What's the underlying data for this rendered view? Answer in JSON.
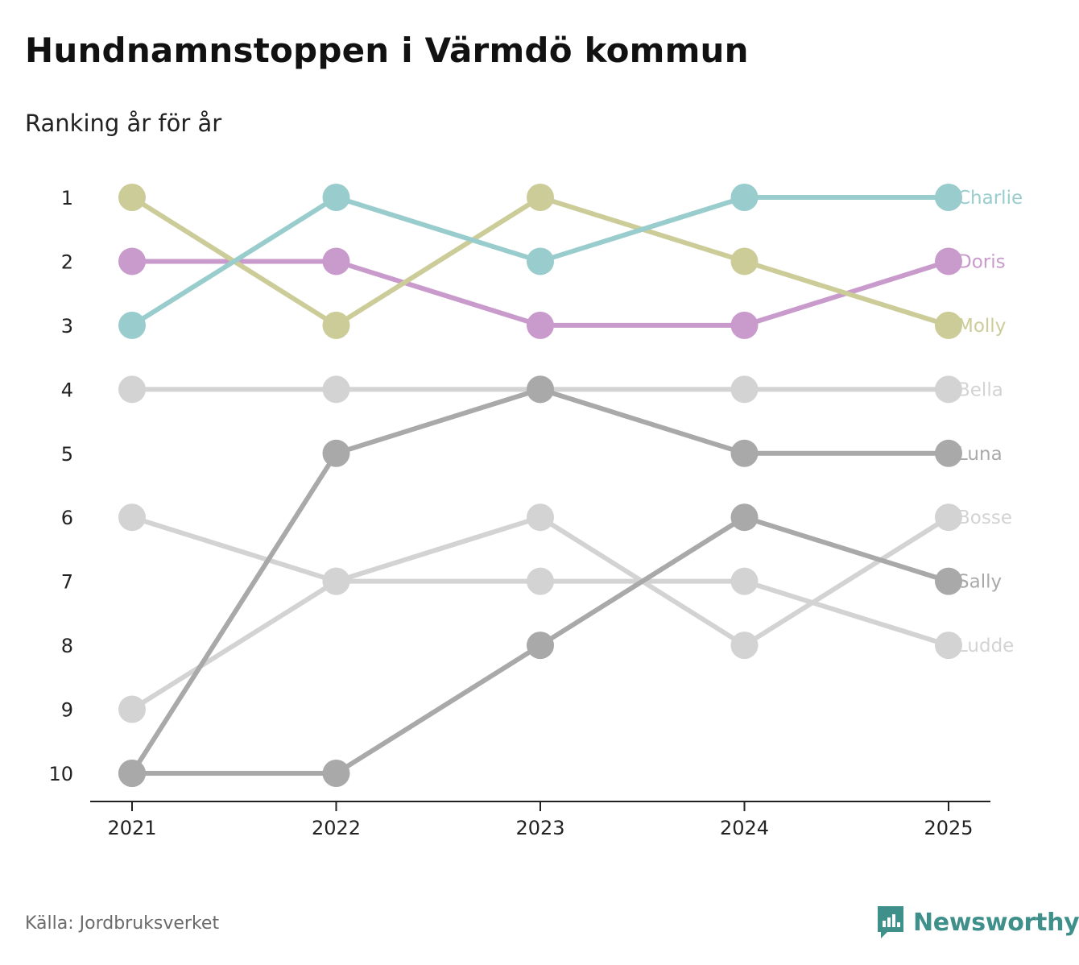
{
  "title": "Hundnamnstoppen i Värmdö kommun",
  "subtitle": "Ranking år för år",
  "source": "Källa: Jordbruksverket",
  "brand": {
    "name": "Newsworthy",
    "logo_icon": "newsworthy-logo-icon",
    "color": "#3f8f8b"
  },
  "chart_data": {
    "type": "line",
    "title": "Hundnamnstoppen i Värmdö kommun",
    "subtitle": "Ranking år för år",
    "xlabel": "",
    "ylabel": "",
    "x": [
      2021,
      2022,
      2023,
      2024,
      2025
    ],
    "x_tick_labels": [
      "2021",
      "2022",
      "2023",
      "2024",
      "2025"
    ],
    "y_tick_labels": [
      "1",
      "2",
      "3",
      "4",
      "5",
      "6",
      "7",
      "8",
      "9",
      "10"
    ],
    "ylim": [
      1,
      10
    ],
    "y_inverted": true,
    "grid": false,
    "series": [
      {
        "name": "Bosse",
        "color": "#d3d3d3",
        "values": [
          9,
          7,
          6,
          8,
          6
        ]
      },
      {
        "name": "Ludde",
        "color": "#d3d3d3",
        "values": [
          6,
          7,
          7,
          7,
          8
        ]
      },
      {
        "name": "Bella",
        "color": "#d3d3d3",
        "values": [
          4,
          4,
          4,
          4,
          4
        ]
      },
      {
        "name": "Sally",
        "color": "#a9a9a9",
        "values": [
          10,
          10,
          8,
          6,
          7
        ]
      },
      {
        "name": "Luna",
        "color": "#a9a9a9",
        "values": [
          10,
          5,
          4,
          5,
          5
        ]
      },
      {
        "name": "Doris",
        "color": "#c99acc",
        "values": [
          2,
          2,
          3,
          3,
          2
        ]
      },
      {
        "name": "Molly",
        "color": "#cccc99",
        "values": [
          1,
          3,
          1,
          2,
          3
        ]
      },
      {
        "name": "Charlie",
        "color": "#99cccc",
        "values": [
          3,
          1,
          2,
          1,
          1
        ]
      }
    ]
  }
}
